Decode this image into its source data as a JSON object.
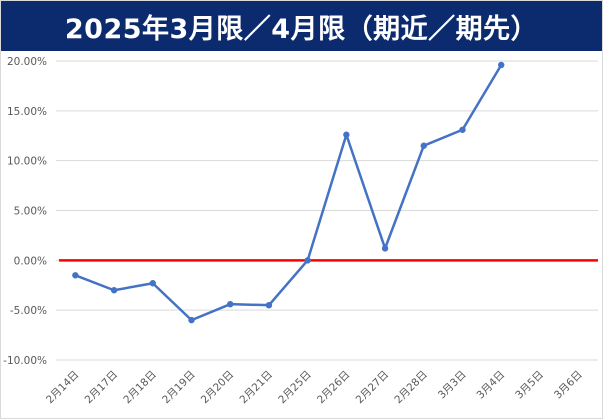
{
  "title": "2025年3月限／4月限（期近／期先）",
  "chart_data": {
    "type": "line",
    "title": "2025年3月限／4月限（期近／期先）",
    "categories": [
      "2月14日",
      "2月17日",
      "2月18日",
      "2月19日",
      "2月20日",
      "2月21日",
      "2月25日",
      "2月26日",
      "2月27日",
      "2月28日",
      "3月3日",
      "3月4日",
      "3月5日",
      "3月6日"
    ],
    "series": [
      {
        "values": [
          -1.5,
          -3.0,
          -2.3,
          -6.0,
          -4.4,
          -4.5,
          0.0,
          12.6,
          1.2,
          11.5,
          13.1,
          19.6,
          null,
          null
        ]
      }
    ],
    "ylim": [
      -10,
      20
    ],
    "yticks": [
      "-10.00%",
      "-5.00%",
      "0.00%",
      "5.00%",
      "10.00%",
      "15.00%",
      "20.00%"
    ],
    "reference_line": 0,
    "grid": true,
    "colors": {
      "line": "#4472c4",
      "reference": "#ff0000",
      "header": "#0c2a6e"
    }
  }
}
